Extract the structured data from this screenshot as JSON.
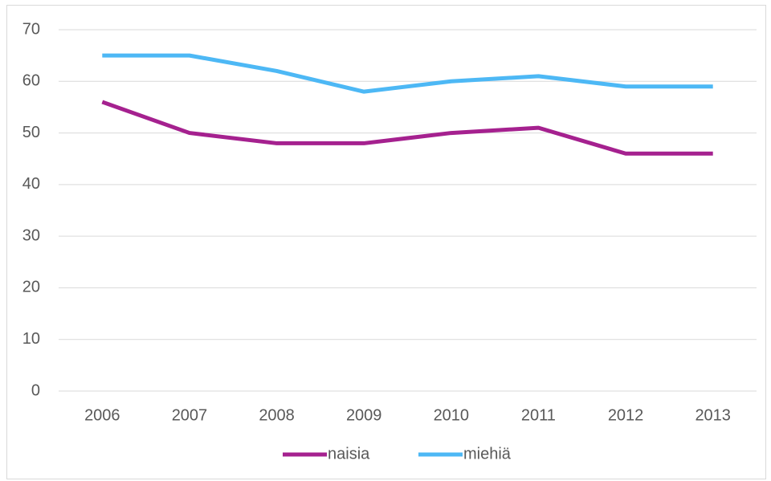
{
  "chart_data": {
    "type": "line",
    "categories": [
      "2006",
      "2007",
      "2008",
      "2009",
      "2010",
      "2011",
      "2012",
      "2013"
    ],
    "series": [
      {
        "name": "naisia",
        "color": "#a5218f",
        "values": [
          56,
          50,
          48,
          48,
          50,
          51,
          46,
          46
        ]
      },
      {
        "name": "miehiä",
        "color": "#4db8f5",
        "values": [
          65,
          65,
          62,
          58,
          60,
          61,
          59,
          59
        ]
      }
    ],
    "ylim": [
      0,
      70
    ],
    "yticks": [
      0,
      10,
      20,
      30,
      40,
      50,
      60,
      70
    ],
    "grid": true,
    "legend": "bottom"
  }
}
